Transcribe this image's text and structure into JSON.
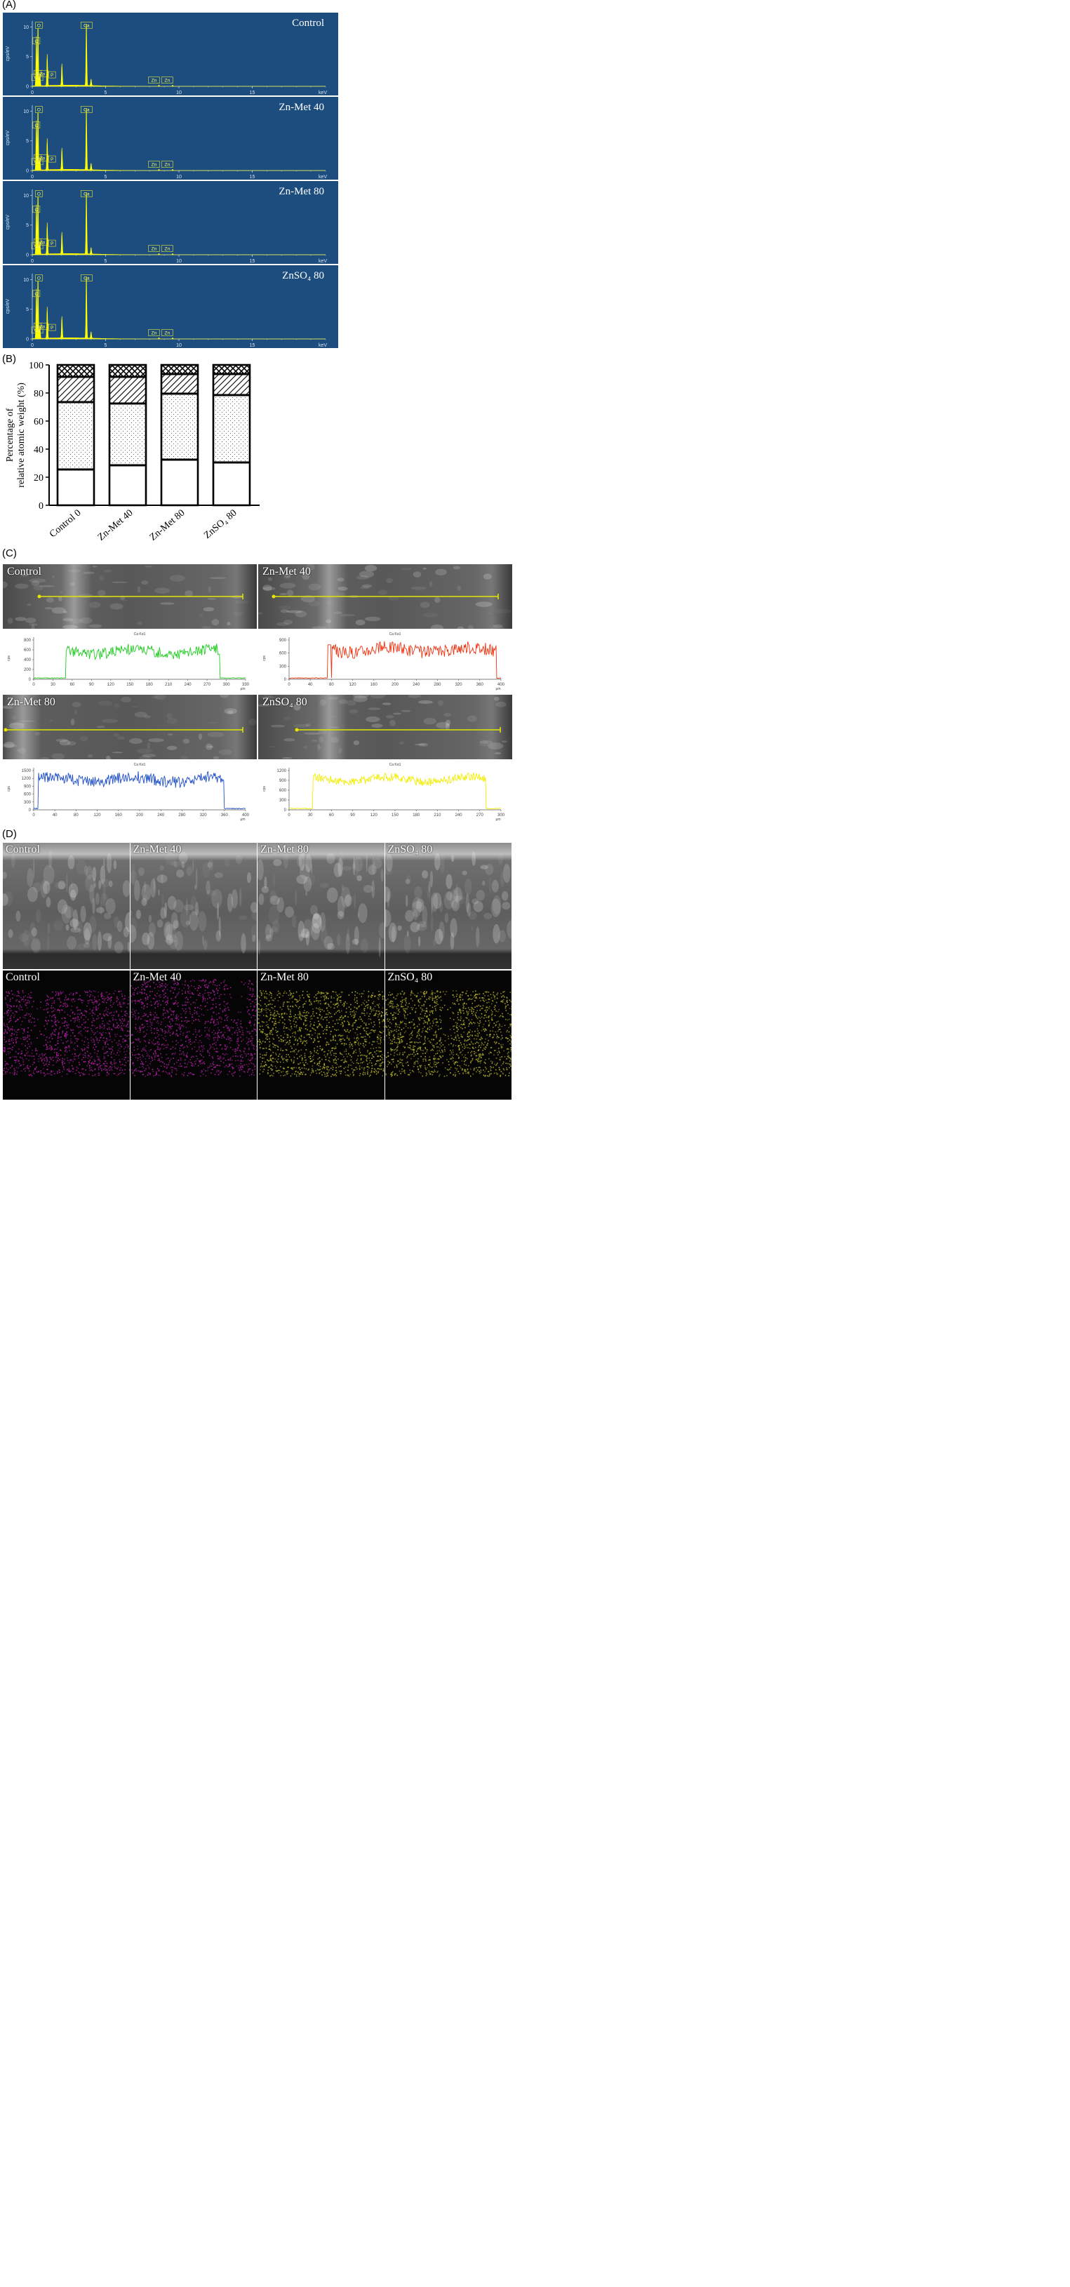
{
  "panels": {
    "a": "(A)",
    "b": "(B)",
    "c": "(C)",
    "d": "(D)"
  },
  "colors": {
    "eds_bg": "#1d4d7e",
    "eds_peak": "#ffff00",
    "green": "#22cc22",
    "red": "#ee3311",
    "blue": "#1f4fc8",
    "yellow": "#f2ee00",
    "magenta": "#b01ea0",
    "olive": "#b5b02a"
  },
  "eds": {
    "y_axis_label": "cps/eV",
    "x_unit": "keV",
    "x_ticks": [
      "0",
      "5",
      "10",
      "15"
    ],
    "y_ticks": [
      "0",
      "5",
      "10"
    ],
    "spectra": [
      {
        "caption": "Control",
        "labels": [
          "O",
          "C",
          "Ca",
          "N",
          "Zn",
          "P",
          "Ca",
          "Zn",
          "Zn"
        ]
      },
      {
        "caption": "Zn-Met 40",
        "labels": [
          "O",
          "C",
          "Ca",
          "N",
          "Zn",
          "P",
          "Ca",
          "Zn",
          "Zn"
        ]
      },
      {
        "caption": "Zn-Met 80",
        "labels": [
          "O",
          "C",
          "Ca",
          "N",
          "Zn",
          "P",
          "Ca",
          "Zn",
          "Zn"
        ]
      },
      {
        "caption": "ZnSO₄ 80",
        "labels": [
          "O",
          "C",
          "Ca",
          "N",
          "Zn",
          "P",
          "Ca",
          "Zn",
          "Zn"
        ]
      }
    ]
  },
  "chart_data": {
    "type": "bar",
    "stacked": true,
    "categories": [
      "Control 0",
      "Zn-Met 40",
      "Zn-Met 80",
      "ZnSO₄ 80"
    ],
    "ylabel": "Percentage of relative atomic weight (%)",
    "ylim": [
      0,
      100
    ],
    "yticks": [
      0,
      20,
      40,
      60,
      80,
      100
    ],
    "series": [
      {
        "values": [
          25,
          28,
          32,
          30
        ]
      },
      {
        "values": [
          1,
          1,
          1,
          1
        ]
      },
      {
        "values": [
          47,
          43,
          46,
          47
        ]
      },
      {
        "values": [
          1,
          1,
          1,
          1
        ]
      },
      {
        "values": [
          17,
          18,
          13,
          14
        ]
      },
      {
        "values": [
          1,
          1,
          1,
          1
        ]
      },
      {
        "values": [
          8,
          8,
          6,
          6
        ]
      }
    ]
  },
  "line_scans": {
    "title": "Ca Kα1",
    "y_unit": "cps",
    "x_unit": "μm",
    "panels": [
      {
        "caption": "Control",
        "x_ticks": [
          "0",
          "30",
          "60",
          "90",
          "120",
          "150",
          "180",
          "210",
          "240",
          "270",
          "300",
          "330"
        ],
        "y_ticks": [
          "0",
          "200",
          "400",
          "600",
          "800"
        ],
        "profile": {
          "start": 15,
          "end": 88,
          "level": 0.66,
          "noise": 0.13
        }
      },
      {
        "caption": "Zn-Met 40",
        "x_ticks": [
          "0",
          "40",
          "80",
          "120",
          "160",
          "200",
          "240",
          "280",
          "320",
          "360",
          "400"
        ],
        "y_ticks": [
          "0",
          "300",
          "600",
          "900"
        ],
        "profile": {
          "start": 20,
          "end": 98,
          "level": 0.7,
          "noise": 0.15
        }
      },
      {
        "caption": "Zn-Met 80",
        "x_ticks": [
          "0",
          "40",
          "80",
          "120",
          "160",
          "200",
          "240",
          "280",
          "320",
          "360",
          "400"
        ],
        "y_ticks": [
          "0",
          "300",
          "600",
          "900",
          "1200",
          "1500"
        ],
        "profile": {
          "start": 2,
          "end": 90,
          "level": 0.72,
          "noise": 0.14
        }
      },
      {
        "caption": "ZnSO₄ 80",
        "x_ticks": [
          "0",
          "30",
          "60",
          "90",
          "120",
          "150",
          "180",
          "210",
          "240",
          "270",
          "300"
        ],
        "y_ticks": [
          "0",
          "300",
          "600",
          "900",
          "1200"
        ],
        "profile": {
          "start": 11,
          "end": 93,
          "level": 0.72,
          "noise": 0.1
        }
      }
    ]
  },
  "mapping": {
    "top_captions": [
      "Control",
      "Zn-Met 40",
      "Zn-Met 80",
      "ZnSO₄ 80"
    ],
    "bottom_captions": [
      "Control",
      "Zn-Met 40",
      "Zn-Met 80",
      "ZnSO₄ 80"
    ]
  }
}
